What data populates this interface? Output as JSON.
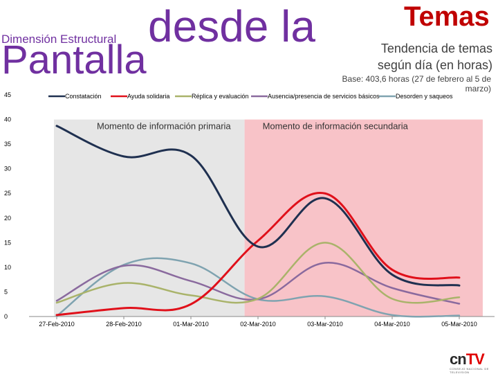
{
  "header": {
    "subtitle": "Dimensión Estructural",
    "title_part1": "desde la",
    "title_part2": "Pantalla",
    "temas": "Temas",
    "trend_line1": "Tendencia de temas",
    "trend_line2": "según día (en horas)",
    "base": "Base: 403,6 horas (27 de febrero al 5 de marzo)"
  },
  "logo": {
    "main": "cn",
    "accent": "TV",
    "sub": "CONSEJO NACIONAL DE TELEVISION"
  },
  "colors": {
    "region_primary": "#e6e6e6",
    "region_secondary": "#f8c3c8",
    "constatacion": "#1f3050",
    "ayuda_solidaria": "#e0101a",
    "replica": "#a9b36a",
    "ausencia": "#8a6a9e",
    "desorden": "#7fa3b0"
  },
  "chart_data": {
    "type": "line",
    "title": "Tendencia de temas según día (en horas)",
    "xlabel": "",
    "ylabel": "",
    "ylim": [
      0,
      45
    ],
    "yticks": [
      0,
      5,
      10,
      15,
      20,
      25,
      30,
      35,
      40,
      45
    ],
    "categories": [
      "27-Feb-2010",
      "28-Feb-2010",
      "01-Mar-2010",
      "02-Mar-2010",
      "03-Mar-2010",
      "04-Mar-2010",
      "05-Mar-2010"
    ],
    "regions": [
      {
        "label": "Momento de información primaria",
        "from_index": 0,
        "to_index": 2.8
      },
      {
        "label": "Momento de información secundaria",
        "from_index": 2.8,
        "to_index": 6.35
      }
    ],
    "legend_position": "top",
    "series": [
      {
        "key": "constatacion",
        "name": "Constatación",
        "values": [
          38.7,
          32.5,
          32.7,
          14.2,
          24,
          8.5,
          6.3
        ]
      },
      {
        "key": "ayuda_solidaria",
        "name": "Ayuda solidaria",
        "values": [
          0.3,
          1.7,
          2.5,
          15.4,
          25,
          9.5,
          7.9
        ]
      },
      {
        "key": "replica",
        "name": "Réplica y evaluación",
        "values": [
          2.8,
          6.8,
          4.3,
          3.6,
          15,
          3.6,
          3.9
        ]
      },
      {
        "key": "ausencia",
        "name": "Ausencia/presencia de servicios básicos",
        "values": [
          3.2,
          10.3,
          7.2,
          3.5,
          10.9,
          5.8,
          2.6
        ]
      },
      {
        "key": "desorden",
        "name": "Desorden y saqueos",
        "values": [
          0.1,
          10.5,
          10.8,
          3.5,
          4.1,
          0.3,
          0.2
        ]
      }
    ]
  }
}
